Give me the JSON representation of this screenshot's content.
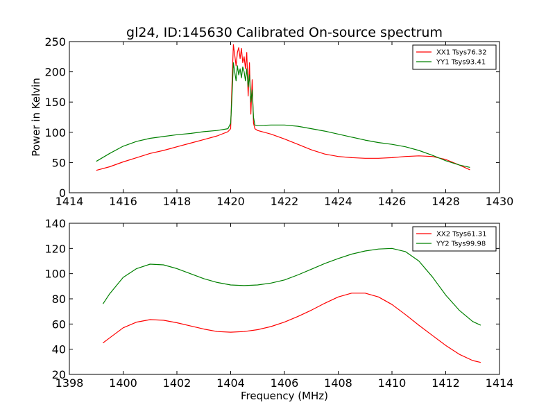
{
  "colors": {
    "red": "#ff0000",
    "green": "#008000"
  },
  "chart_data": [
    {
      "type": "line",
      "title": "gl24, ID:145630 Calibrated On-source spectrum",
      "xlabel": "",
      "ylabel": "Power in Kelvin",
      "xlim": [
        1414,
        1430
      ],
      "ylim": [
        0,
        250
      ],
      "xticks": [
        "1414",
        "1416",
        "1418",
        "1420",
        "1422",
        "1424",
        "1426",
        "1428",
        "1430"
      ],
      "yticks": [
        "0",
        "50",
        "100",
        "150",
        "200",
        "250"
      ],
      "legend_position": "top-right",
      "series": [
        {
          "name": "XX1 Tsys76.32",
          "color": "#ff0000",
          "x": [
            1415.0,
            1415.5,
            1416.0,
            1416.5,
            1417.0,
            1417.5,
            1418.0,
            1418.5,
            1419.0,
            1419.5,
            1419.9,
            1420.0,
            1420.05,
            1420.1,
            1420.15,
            1420.2,
            1420.25,
            1420.3,
            1420.35,
            1420.4,
            1420.45,
            1420.5,
            1420.55,
            1420.6,
            1420.65,
            1420.7,
            1420.75,
            1420.8,
            1420.85,
            1420.9,
            1421.0,
            1421.5,
            1422.0,
            1422.5,
            1423.0,
            1423.5,
            1424.0,
            1424.5,
            1425.0,
            1425.5,
            1426.0,
            1426.5,
            1427.0,
            1427.5,
            1428.0,
            1428.5,
            1428.9
          ],
          "y": [
            37,
            43,
            51,
            58,
            65,
            70,
            76,
            82,
            88,
            94,
            101,
            106,
            180,
            245,
            228,
            210,
            232,
            240,
            222,
            239,
            215,
            225,
            205,
            232,
            160,
            215,
            130,
            187,
            115,
            106,
            103,
            97,
            89,
            80,
            71,
            64,
            60,
            58,
            57,
            57,
            58,
            60,
            61,
            60,
            55,
            46,
            38
          ]
        },
        {
          "name": "YY1 Tsys93.41",
          "color": "#008000",
          "x": [
            1415.0,
            1415.5,
            1416.0,
            1416.5,
            1417.0,
            1417.5,
            1418.0,
            1418.5,
            1419.0,
            1419.5,
            1419.9,
            1420.0,
            1420.05,
            1420.1,
            1420.15,
            1420.2,
            1420.25,
            1420.3,
            1420.35,
            1420.4,
            1420.45,
            1420.5,
            1420.55,
            1420.6,
            1420.65,
            1420.7,
            1420.75,
            1420.8,
            1420.85,
            1420.9,
            1421.0,
            1421.5,
            1422.0,
            1422.5,
            1423.0,
            1423.5,
            1424.0,
            1424.5,
            1425.0,
            1425.5,
            1426.0,
            1426.5,
            1427.0,
            1427.5,
            1428.0,
            1428.5,
            1428.9
          ],
          "y": [
            52,
            65,
            77,
            85,
            90,
            93,
            96,
            98,
            101,
            103,
            106,
            115,
            160,
            215,
            200,
            185,
            210,
            195,
            205,
            190,
            208,
            200,
            185,
            205,
            175,
            195,
            150,
            170,
            125,
            112,
            111,
            112,
            112,
            110,
            106,
            102,
            97,
            92,
            87,
            83,
            80,
            76,
            70,
            62,
            53,
            46,
            42
          ]
        }
      ]
    },
    {
      "type": "line",
      "title": "",
      "xlabel": "Frequency (MHz)",
      "ylabel": "",
      "xlim": [
        1398,
        1414
      ],
      "ylim": [
        20,
        140
      ],
      "xticks": [
        "1398",
        "1400",
        "1402",
        "1404",
        "1406",
        "1408",
        "1410",
        "1412",
        "1414"
      ],
      "yticks": [
        "20",
        "40",
        "60",
        "80",
        "100",
        "120",
        "140"
      ],
      "legend_position": "top-right",
      "series": [
        {
          "name": "XX2 Tsys61.31",
          "color": "#ff0000",
          "x": [
            1399.25,
            1399.5,
            1400.0,
            1400.5,
            1401.0,
            1401.5,
            1402.0,
            1402.5,
            1403.0,
            1403.5,
            1404.0,
            1404.5,
            1405.0,
            1405.5,
            1406.0,
            1406.5,
            1407.0,
            1407.5,
            1408.0,
            1408.5,
            1409.0,
            1409.5,
            1410.0,
            1410.5,
            1411.0,
            1411.5,
            1412.0,
            1412.5,
            1413.0,
            1413.3
          ],
          "y": [
            45,
            49,
            57,
            61.5,
            63.5,
            63,
            61,
            58.5,
            56,
            54,
            53.5,
            54,
            55.5,
            58,
            61.5,
            66,
            71,
            76.5,
            81.5,
            84.5,
            84.5,
            81.5,
            75.5,
            67.5,
            59,
            51,
            43,
            36,
            31,
            29.5
          ]
        },
        {
          "name": "YY2 Tsys99.98",
          "color": "#008000",
          "x": [
            1399.25,
            1399.5,
            1400.0,
            1400.5,
            1401.0,
            1401.5,
            1402.0,
            1402.5,
            1403.0,
            1403.5,
            1404.0,
            1404.5,
            1405.0,
            1405.5,
            1406.0,
            1406.5,
            1407.0,
            1407.5,
            1408.0,
            1408.5,
            1409.0,
            1409.5,
            1410.0,
            1410.5,
            1411.0,
            1411.5,
            1412.0,
            1412.5,
            1413.0,
            1413.3
          ],
          "y": [
            76,
            84,
            97,
            104,
            107.5,
            107,
            104,
            100,
            96,
            93,
            91,
            90.5,
            91,
            92.5,
            95,
            99,
            103.5,
            108,
            112,
            115.5,
            118,
            119.5,
            120,
            117.5,
            110,
            97.5,
            83,
            71,
            62,
            59
          ]
        }
      ]
    }
  ]
}
